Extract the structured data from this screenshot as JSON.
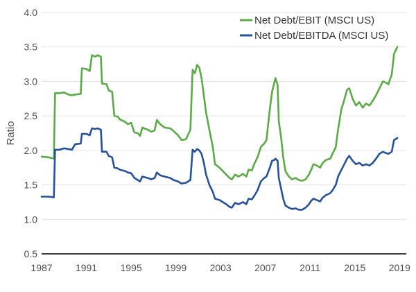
{
  "chart_data": {
    "type": "line",
    "ylabel": "Ratio",
    "xlabel": "",
    "ylim": [
      0.5,
      4.0
    ],
    "xlim": [
      1987,
      2019.6
    ],
    "yticks": [
      "0.5",
      "1.0",
      "1.5",
      "2.0",
      "2.5",
      "3.0",
      "3.5",
      "4.0"
    ],
    "xticks": [
      "1987",
      "1991",
      "1995",
      "1999",
      "2003",
      "2007",
      "2011",
      "2015",
      "2019"
    ],
    "grid": true,
    "legend_position": "top-right",
    "series": [
      {
        "name": "Net Debt/EBIT (MSCI US)",
        "color": "#5aaa46",
        "points": [
          [
            1987.0,
            1.91
          ],
          [
            1987.6,
            1.9
          ],
          [
            1988.1,
            1.88
          ],
          [
            1988.2,
            2.83
          ],
          [
            1988.6,
            2.83
          ],
          [
            1989.0,
            2.84
          ],
          [
            1989.4,
            2.81
          ],
          [
            1989.7,
            2.8
          ],
          [
            1990.0,
            2.81
          ],
          [
            1990.5,
            2.82
          ],
          [
            1990.6,
            3.19
          ],
          [
            1991.0,
            3.18
          ],
          [
            1991.3,
            3.15
          ],
          [
            1991.5,
            3.38
          ],
          [
            1991.8,
            3.36
          ],
          [
            1992.0,
            3.38
          ],
          [
            1992.3,
            3.36
          ],
          [
            1992.4,
            2.97
          ],
          [
            1992.8,
            2.96
          ],
          [
            1993.0,
            2.87
          ],
          [
            1993.3,
            2.85
          ],
          [
            1993.5,
            2.5
          ],
          [
            1993.8,
            2.49
          ],
          [
            1994.0,
            2.45
          ],
          [
            1994.5,
            2.41
          ],
          [
            1994.7,
            2.38
          ],
          [
            1995.0,
            2.4
          ],
          [
            1995.3,
            2.26
          ],
          [
            1995.6,
            2.25
          ],
          [
            1995.8,
            2.21
          ],
          [
            1996.0,
            2.33
          ],
          [
            1996.5,
            2.3
          ],
          [
            1996.8,
            2.27
          ],
          [
            1997.1,
            2.29
          ],
          [
            1997.3,
            2.44
          ],
          [
            1997.6,
            2.38
          ],
          [
            1998.0,
            2.33
          ],
          [
            1998.5,
            2.32
          ],
          [
            1998.8,
            2.28
          ],
          [
            1999.2,
            2.22
          ],
          [
            1999.5,
            2.15
          ],
          [
            1999.9,
            2.16
          ],
          [
            2000.3,
            2.3
          ],
          [
            2000.5,
            3.17
          ],
          [
            2000.7,
            3.12
          ],
          [
            2000.9,
            3.24
          ],
          [
            2001.1,
            3.2
          ],
          [
            2001.3,
            3.05
          ],
          [
            2001.5,
            2.8
          ],
          [
            2001.7,
            2.55
          ],
          [
            2002.0,
            2.3
          ],
          [
            2002.3,
            2.05
          ],
          [
            2002.5,
            1.8
          ],
          [
            2002.9,
            1.75
          ],
          [
            2003.2,
            1.7
          ],
          [
            2003.5,
            1.65
          ],
          [
            2003.8,
            1.6
          ],
          [
            2004.0,
            1.58
          ],
          [
            2004.3,
            1.65
          ],
          [
            2004.6,
            1.62
          ],
          [
            2005.0,
            1.66
          ],
          [
            2005.3,
            1.62
          ],
          [
            2005.5,
            1.72
          ],
          [
            2005.8,
            1.71
          ],
          [
            2006.0,
            1.8
          ],
          [
            2006.3,
            1.9
          ],
          [
            2006.6,
            2.05
          ],
          [
            2006.9,
            2.1
          ],
          [
            2007.1,
            2.15
          ],
          [
            2007.4,
            2.6
          ],
          [
            2007.6,
            2.85
          ],
          [
            2007.8,
            2.98
          ],
          [
            2007.9,
            3.05
          ],
          [
            2008.1,
            2.95
          ],
          [
            2008.2,
            2.42
          ],
          [
            2008.4,
            2.2
          ],
          [
            2008.6,
            1.9
          ],
          [
            2008.8,
            1.7
          ],
          [
            2009.1,
            1.62
          ],
          [
            2009.4,
            1.58
          ],
          [
            2009.7,
            1.6
          ],
          [
            2010.0,
            1.57
          ],
          [
            2010.3,
            1.56
          ],
          [
            2010.6,
            1.58
          ],
          [
            2010.9,
            1.65
          ],
          [
            2011.1,
            1.72
          ],
          [
            2011.3,
            1.8
          ],
          [
            2011.6,
            1.78
          ],
          [
            2011.9,
            1.75
          ],
          [
            2012.1,
            1.81
          ],
          [
            2012.4,
            1.86
          ],
          [
            2012.8,
            1.88
          ],
          [
            2013.0,
            1.95
          ],
          [
            2013.3,
            2.05
          ],
          [
            2013.5,
            2.3
          ],
          [
            2013.8,
            2.6
          ],
          [
            2014.0,
            2.7
          ],
          [
            2014.3,
            2.88
          ],
          [
            2014.5,
            2.9
          ],
          [
            2014.8,
            2.75
          ],
          [
            2015.1,
            2.65
          ],
          [
            2015.4,
            2.7
          ],
          [
            2015.7,
            2.62
          ],
          [
            2016.0,
            2.68
          ],
          [
            2016.3,
            2.65
          ],
          [
            2016.6,
            2.72
          ],
          [
            2016.9,
            2.8
          ],
          [
            2017.2,
            2.9
          ],
          [
            2017.5,
            3.0
          ],
          [
            2017.8,
            2.98
          ],
          [
            2018.0,
            2.96
          ],
          [
            2018.3,
            3.1
          ],
          [
            2018.5,
            3.4
          ],
          [
            2018.8,
            3.5
          ]
        ]
      },
      {
        "name": "Net Debt/EBITDA (MSCI US)",
        "color": "#24509c",
        "points": [
          [
            1987.0,
            1.33
          ],
          [
            1987.6,
            1.33
          ],
          [
            1988.1,
            1.32
          ],
          [
            1988.2,
            2.01
          ],
          [
            1988.6,
            2.01
          ],
          [
            1989.0,
            2.03
          ],
          [
            1989.4,
            2.02
          ],
          [
            1989.7,
            2.01
          ],
          [
            1990.0,
            2.09
          ],
          [
            1990.5,
            2.1
          ],
          [
            1990.6,
            2.24
          ],
          [
            1991.0,
            2.24
          ],
          [
            1991.3,
            2.22
          ],
          [
            1991.5,
            2.32
          ],
          [
            1991.8,
            2.31
          ],
          [
            1992.0,
            2.32
          ],
          [
            1992.3,
            2.3
          ],
          [
            1992.4,
            1.98
          ],
          [
            1992.8,
            1.98
          ],
          [
            1993.0,
            1.92
          ],
          [
            1993.3,
            1.9
          ],
          [
            1993.5,
            1.75
          ],
          [
            1993.8,
            1.74
          ],
          [
            1994.0,
            1.72
          ],
          [
            1994.5,
            1.7
          ],
          [
            1994.7,
            1.68
          ],
          [
            1995.0,
            1.67
          ],
          [
            1995.3,
            1.6
          ],
          [
            1995.6,
            1.57
          ],
          [
            1995.8,
            1.55
          ],
          [
            1996.0,
            1.62
          ],
          [
            1996.5,
            1.6
          ],
          [
            1996.8,
            1.58
          ],
          [
            1997.1,
            1.6
          ],
          [
            1997.3,
            1.68
          ],
          [
            1997.6,
            1.64
          ],
          [
            1998.0,
            1.62
          ],
          [
            1998.5,
            1.6
          ],
          [
            1998.8,
            1.57
          ],
          [
            1999.2,
            1.55
          ],
          [
            1999.5,
            1.52
          ],
          [
            1999.9,
            1.53
          ],
          [
            2000.3,
            1.57
          ],
          [
            2000.5,
            2.01
          ],
          [
            2000.7,
            1.98
          ],
          [
            2000.9,
            2.02
          ],
          [
            2001.1,
            2.0
          ],
          [
            2001.3,
            1.95
          ],
          [
            2001.5,
            1.82
          ],
          [
            2001.7,
            1.65
          ],
          [
            2002.0,
            1.5
          ],
          [
            2002.3,
            1.4
          ],
          [
            2002.5,
            1.3
          ],
          [
            2002.9,
            1.28
          ],
          [
            2003.2,
            1.25
          ],
          [
            2003.5,
            1.22
          ],
          [
            2003.8,
            1.18
          ],
          [
            2004.0,
            1.17
          ],
          [
            2004.3,
            1.24
          ],
          [
            2004.6,
            1.22
          ],
          [
            2005.0,
            1.25
          ],
          [
            2005.3,
            1.22
          ],
          [
            2005.5,
            1.3
          ],
          [
            2005.8,
            1.29
          ],
          [
            2006.0,
            1.34
          ],
          [
            2006.3,
            1.42
          ],
          [
            2006.6,
            1.55
          ],
          [
            2006.9,
            1.6
          ],
          [
            2007.1,
            1.62
          ],
          [
            2007.4,
            1.75
          ],
          [
            2007.6,
            1.85
          ],
          [
            2007.8,
            1.86
          ],
          [
            2007.9,
            1.88
          ],
          [
            2008.1,
            1.85
          ],
          [
            2008.2,
            1.6
          ],
          [
            2008.4,
            1.45
          ],
          [
            2008.6,
            1.3
          ],
          [
            2008.8,
            1.2
          ],
          [
            2009.1,
            1.17
          ],
          [
            2009.4,
            1.15
          ],
          [
            2009.7,
            1.16
          ],
          [
            2010.0,
            1.14
          ],
          [
            2010.3,
            1.14
          ],
          [
            2010.6,
            1.17
          ],
          [
            2010.9,
            1.22
          ],
          [
            2011.1,
            1.27
          ],
          [
            2011.3,
            1.3
          ],
          [
            2011.6,
            1.28
          ],
          [
            2011.9,
            1.26
          ],
          [
            2012.1,
            1.31
          ],
          [
            2012.4,
            1.35
          ],
          [
            2012.8,
            1.38
          ],
          [
            2013.0,
            1.42
          ],
          [
            2013.3,
            1.5
          ],
          [
            2013.5,
            1.62
          ],
          [
            2013.8,
            1.72
          ],
          [
            2014.0,
            1.78
          ],
          [
            2014.3,
            1.88
          ],
          [
            2014.5,
            1.92
          ],
          [
            2014.8,
            1.85
          ],
          [
            2015.1,
            1.8
          ],
          [
            2015.4,
            1.82
          ],
          [
            2015.7,
            1.78
          ],
          [
            2016.0,
            1.8
          ],
          [
            2016.3,
            1.78
          ],
          [
            2016.6,
            1.82
          ],
          [
            2016.9,
            1.88
          ],
          [
            2017.2,
            1.95
          ],
          [
            2017.5,
            1.98
          ],
          [
            2017.8,
            1.96
          ],
          [
            2018.0,
            1.95
          ],
          [
            2018.3,
            1.98
          ],
          [
            2018.5,
            2.15
          ],
          [
            2018.8,
            2.18
          ]
        ]
      }
    ]
  }
}
